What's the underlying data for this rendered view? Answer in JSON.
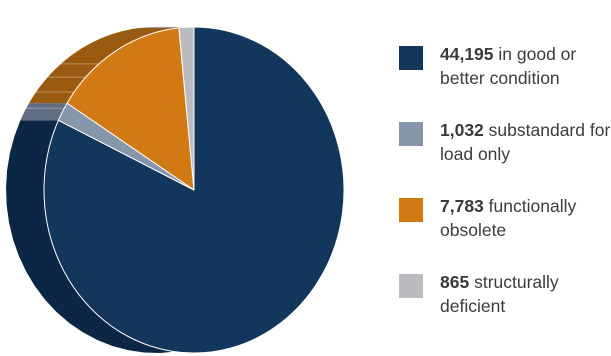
{
  "chart_data": {
    "type": "pie",
    "title": "",
    "slices": [
      {
        "value": 44195,
        "value_label": "44,195",
        "label": "in good or better condition",
        "color": "#12365c",
        "side_color": "#0b2745"
      },
      {
        "value": 1032,
        "value_label": "1,032",
        "label": "substandard for load only",
        "color": "#8796aa",
        "side_color": "#5f6e81"
      },
      {
        "value": 7783,
        "value_label": "7,783",
        "label": "functionally obsolete",
        "color": "#d17a14",
        "side_color": "#9a5a0f"
      },
      {
        "value": 865,
        "value_label": "865",
        "label": "structurally deficient",
        "color": "#babcc0",
        "side_color": "#8e9094"
      }
    ],
    "legend_position": "right"
  }
}
